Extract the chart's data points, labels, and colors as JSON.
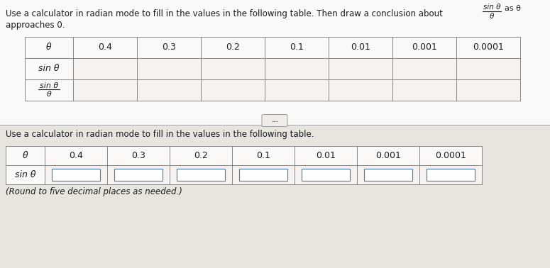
{
  "title_line1": "Use a calculator in radian mode to fill in the values in the following table. Then draw a conclusion about",
  "title_line2": "approaches 0.",
  "frac_num": "sin θ",
  "frac_den": "θ",
  "frac_suffix": "as θ",
  "top_headers": [
    "θ",
    "0.4",
    "0.3",
    "0.2",
    "0.1",
    "0.01",
    "0.001",
    "0.0001"
  ],
  "row1_label": "sin θ",
  "row2_label_top": "sin θ",
  "row2_label_bot": "θ",
  "dots_text": "...",
  "bottom_intro": "Use a calculator in radian mode to fill in the values in the following table.",
  "bottom_headers": [
    "θ",
    "0.4",
    "0.3",
    "0.2",
    "0.1",
    "0.01",
    "0.001",
    "0.0001"
  ],
  "bottom_row_label": "sin θ",
  "bottom_note": "(Round to five decimal places as needed.)",
  "bg_color": "#e8e4de",
  "table_bg_light": "#f5f2ef",
  "table_bg_lighter": "#faf9f7",
  "header_row_bg": "#ede9e5",
  "cell_bg": "#f5f2ef",
  "white": "#ffffff",
  "border_color": "#888888",
  "text_color": "#1a1a1a",
  "blue_border": "#4477cc",
  "divider_color": "#aaaaaa"
}
